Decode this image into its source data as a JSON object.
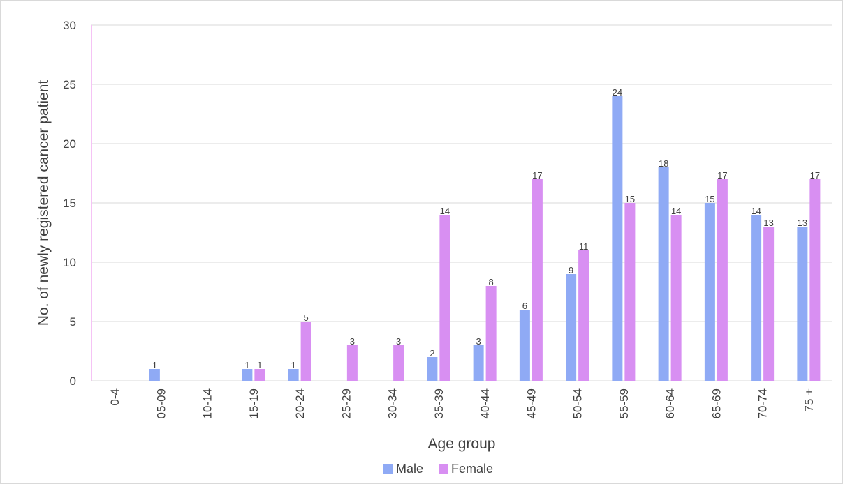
{
  "chart_data": {
    "type": "bar",
    "categories": [
      "0-4",
      "05-09",
      "10-14",
      "15-19",
      "20-24",
      "25-29",
      "30-34",
      "35-39",
      "40-44",
      "45-49",
      "50-54",
      "55-59",
      "60-64",
      "65-69",
      "70-74",
      "75 +"
    ],
    "series": [
      {
        "name": "Male",
        "color": "#8faaf5",
        "values": [
          0,
          1,
          0,
          1,
          1,
          0,
          0,
          2,
          3,
          6,
          9,
          24,
          18,
          15,
          14,
          13
        ]
      },
      {
        "name": "Female",
        "color": "#d88ff2",
        "values": [
          0,
          0,
          0,
          1,
          5,
          3,
          3,
          14,
          8,
          17,
          11,
          15,
          14,
          17,
          13,
          17
        ]
      }
    ],
    "title": "",
    "xlabel": "Age group",
    "ylabel": "No. of newly registered cancer patient",
    "ylim": [
      0,
      30
    ],
    "yticks": [
      0,
      5,
      10,
      15,
      20,
      25,
      30
    ],
    "grid": true,
    "legend_position": "bottom",
    "data_labels": true
  }
}
